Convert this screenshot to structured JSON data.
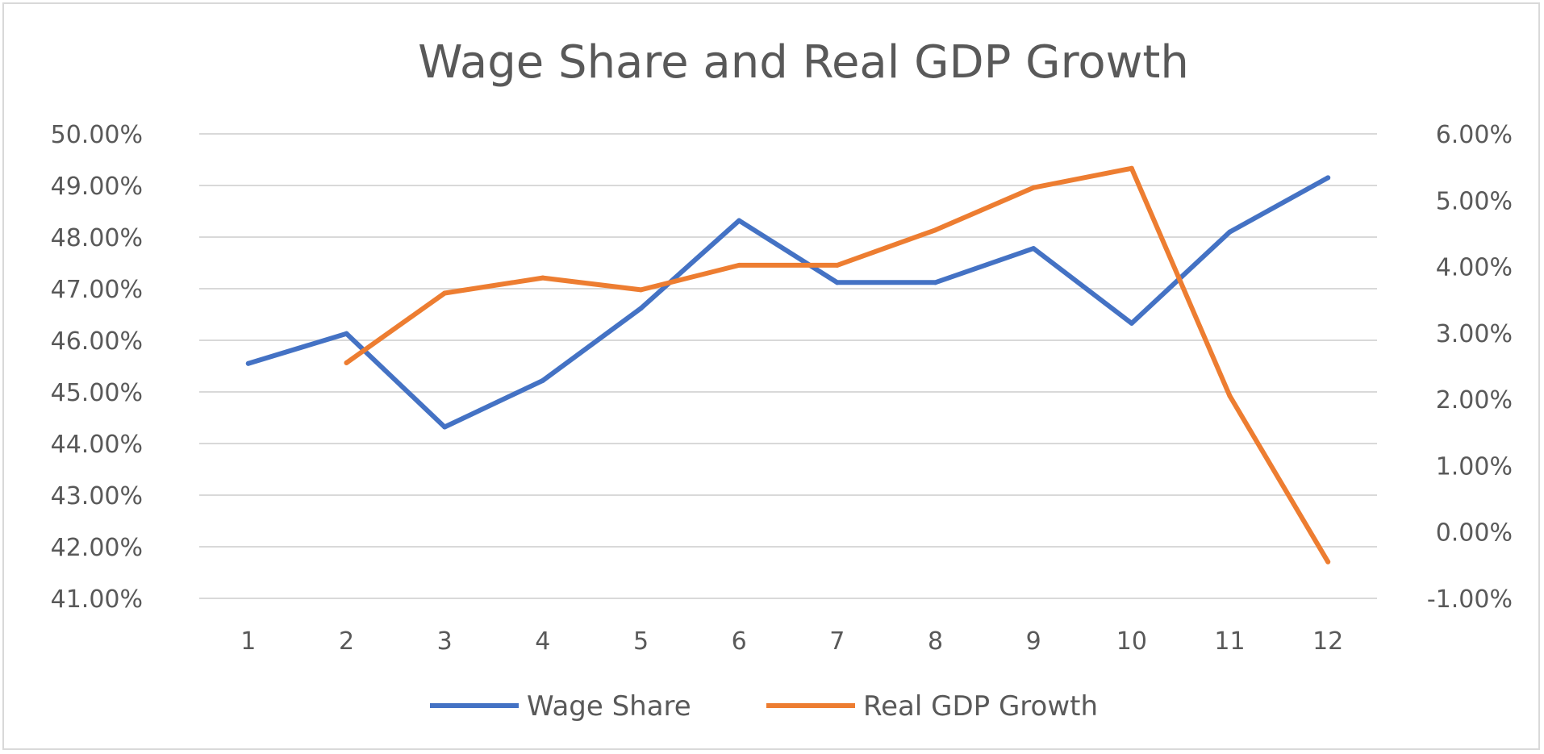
{
  "chart_data": {
    "type": "line",
    "title": "Wage Share and Real GDP Growth",
    "xlabel": "",
    "ylabel": "",
    "categories": [
      "1",
      "2",
      "3",
      "4",
      "5",
      "6",
      "7",
      "8",
      "9",
      "10",
      "11",
      "12"
    ],
    "y_left": {
      "ylim": [
        0.41,
        0.5
      ],
      "ticks": [
        0.41,
        0.42,
        0.43,
        0.44,
        0.45,
        0.46,
        0.47,
        0.48,
        0.49,
        0.5
      ],
      "tick_labels": [
        "41.00%",
        "42.00%",
        "43.00%",
        "44.00%",
        "45.00%",
        "46.00%",
        "47.00%",
        "48.00%",
        "49.00%",
        "50.00%"
      ]
    },
    "y_right": {
      "ylim": [
        -0.01,
        0.06
      ],
      "ticks": [
        -0.01,
        0.0,
        0.01,
        0.02,
        0.03,
        0.04,
        0.05,
        0.06
      ],
      "tick_labels": [
        "-1.00%",
        "0.00%",
        "1.00%",
        "2.00%",
        "3.00%",
        "4.00%",
        "5.00%",
        "6.00%"
      ]
    },
    "grid": true,
    "legend_position": "bottom",
    "series": [
      {
        "name": "Wage Share",
        "axis": "left",
        "color": "#4472C4",
        "values": [
          0.4555,
          0.4613,
          0.4432,
          0.4522,
          0.4662,
          0.4832,
          0.4712,
          0.4712,
          0.4778,
          0.4633,
          0.481,
          0.4915
        ]
      },
      {
        "name": "Real GDP Growth",
        "axis": "right",
        "color": "#ED7D31",
        "values": [
          null,
          0.0255,
          0.036,
          0.0383,
          0.0365,
          0.0402,
          0.0402,
          0.0455,
          0.0519,
          0.0548,
          0.0205,
          -0.0045
        ]
      }
    ]
  }
}
